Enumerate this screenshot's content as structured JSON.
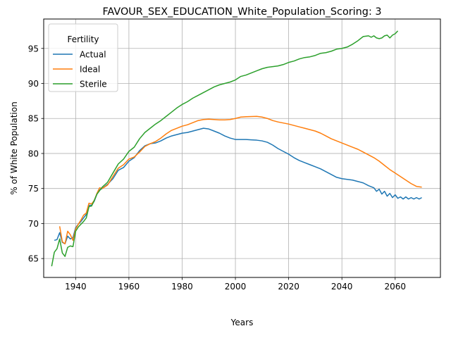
{
  "chart_data": {
    "type": "line",
    "title": "FAVOUR_SEX_EDUCATION_White_Population_Scoring: 3",
    "xlabel": "Years",
    "ylabel": "% of White Population",
    "xlim": [
      1928,
      2077
    ],
    "ylim": [
      62.3,
      99.2
    ],
    "xticks": [
      1940,
      1960,
      1980,
      2000,
      2020,
      2040,
      2060
    ],
    "yticks": [
      65,
      70,
      75,
      80,
      85,
      90,
      95
    ],
    "grid": true,
    "legend": {
      "title": "Fertility",
      "placement": "top-left"
    },
    "series": [
      {
        "name": "Actual",
        "color": "#1f77b4",
        "points": [
          [
            1932,
            67.6
          ],
          [
            1933,
            67.7
          ],
          [
            1934,
            68.7
          ],
          [
            1935,
            67.3
          ],
          [
            1936,
            67.1
          ],
          [
            1937,
            68.2
          ],
          [
            1938,
            67.8
          ],
          [
            1939,
            68.0
          ],
          [
            1940,
            69.4
          ],
          [
            1941,
            69.9
          ],
          [
            1942,
            70.3
          ],
          [
            1943,
            70.8
          ],
          [
            1944,
            71.3
          ],
          [
            1945,
            72.6
          ],
          [
            1946,
            72.6
          ],
          [
            1947,
            73.2
          ],
          [
            1948,
            74.2
          ],
          [
            1949,
            74.8
          ],
          [
            1950,
            75.0
          ],
          [
            1952,
            75.6
          ],
          [
            1954,
            76.4
          ],
          [
            1956,
            77.6
          ],
          [
            1958,
            78.0
          ],
          [
            1960,
            78.9
          ],
          [
            1962,
            79.4
          ],
          [
            1964,
            80.4
          ],
          [
            1966,
            81.1
          ],
          [
            1968,
            81.4
          ],
          [
            1970,
            81.5
          ],
          [
            1972,
            81.8
          ],
          [
            1974,
            82.2
          ],
          [
            1976,
            82.5
          ],
          [
            1978,
            82.7
          ],
          [
            1980,
            82.9
          ],
          [
            1982,
            83.0
          ],
          [
            1984,
            83.2
          ],
          [
            1986,
            83.4
          ],
          [
            1988,
            83.6
          ],
          [
            1990,
            83.5
          ],
          [
            1992,
            83.2
          ],
          [
            1994,
            82.9
          ],
          [
            1996,
            82.5
          ],
          [
            1998,
            82.2
          ],
          [
            2000,
            82.0
          ],
          [
            2002,
            82.0
          ],
          [
            2004,
            82.0
          ],
          [
            2006,
            81.95
          ],
          [
            2008,
            81.9
          ],
          [
            2010,
            81.8
          ],
          [
            2012,
            81.6
          ],
          [
            2014,
            81.2
          ],
          [
            2016,
            80.7
          ],
          [
            2018,
            80.3
          ],
          [
            2020,
            79.9
          ],
          [
            2022,
            79.4
          ],
          [
            2024,
            79.0
          ],
          [
            2026,
            78.7
          ],
          [
            2028,
            78.4
          ],
          [
            2030,
            78.1
          ],
          [
            2032,
            77.8
          ],
          [
            2034,
            77.4
          ],
          [
            2036,
            77.0
          ],
          [
            2038,
            76.6
          ],
          [
            2040,
            76.4
          ],
          [
            2042,
            76.3
          ],
          [
            2044,
            76.2
          ],
          [
            2046,
            76.0
          ],
          [
            2048,
            75.8
          ],
          [
            2050,
            75.4
          ],
          [
            2052,
            75.1
          ],
          [
            2053,
            74.6
          ],
          [
            2054,
            74.9
          ],
          [
            2055,
            74.2
          ],
          [
            2056,
            74.6
          ],
          [
            2057,
            73.9
          ],
          [
            2058,
            74.3
          ],
          [
            2059,
            73.7
          ],
          [
            2060,
            74.1
          ],
          [
            2061,
            73.6
          ],
          [
            2062,
            73.8
          ],
          [
            2063,
            73.5
          ],
          [
            2064,
            73.8
          ],
          [
            2065,
            73.5
          ],
          [
            2066,
            73.7
          ],
          [
            2067,
            73.5
          ],
          [
            2068,
            73.7
          ],
          [
            2069,
            73.5
          ],
          [
            2070,
            73.7
          ]
        ]
      },
      {
        "name": "Ideal",
        "color": "#ff7f0e",
        "points": [
          [
            1934,
            69.6
          ],
          [
            1935,
            67.4
          ],
          [
            1936,
            67.1
          ],
          [
            1937,
            68.9
          ],
          [
            1938,
            68.4
          ],
          [
            1939,
            67.6
          ],
          [
            1940,
            69.2
          ],
          [
            1941,
            69.9
          ],
          [
            1942,
            70.5
          ],
          [
            1943,
            71.2
          ],
          [
            1944,
            71.5
          ],
          [
            1945,
            72.9
          ],
          [
            1946,
            72.8
          ],
          [
            1947,
            73.3
          ],
          [
            1948,
            74.3
          ],
          [
            1949,
            75.1
          ],
          [
            1950,
            75.0
          ],
          [
            1952,
            75.5
          ],
          [
            1954,
            76.7
          ],
          [
            1956,
            77.9
          ],
          [
            1958,
            78.4
          ],
          [
            1960,
            79.2
          ],
          [
            1962,
            79.5
          ],
          [
            1964,
            80.2
          ],
          [
            1966,
            81.0
          ],
          [
            1968,
            81.4
          ],
          [
            1970,
            81.7
          ],
          [
            1972,
            82.2
          ],
          [
            1974,
            82.8
          ],
          [
            1976,
            83.3
          ],
          [
            1978,
            83.6
          ],
          [
            1980,
            83.9
          ],
          [
            1982,
            84.1
          ],
          [
            1984,
            84.4
          ],
          [
            1986,
            84.7
          ],
          [
            1988,
            84.85
          ],
          [
            1990,
            84.9
          ],
          [
            1992,
            84.85
          ],
          [
            1994,
            84.8
          ],
          [
            1996,
            84.8
          ],
          [
            1998,
            84.85
          ],
          [
            2000,
            85.0
          ],
          [
            2002,
            85.2
          ],
          [
            2004,
            85.25
          ],
          [
            2006,
            85.28
          ],
          [
            2008,
            85.3
          ],
          [
            2010,
            85.2
          ],
          [
            2012,
            85.0
          ],
          [
            2014,
            84.7
          ],
          [
            2016,
            84.5
          ],
          [
            2018,
            84.35
          ],
          [
            2020,
            84.2
          ],
          [
            2022,
            84.0
          ],
          [
            2024,
            83.8
          ],
          [
            2026,
            83.6
          ],
          [
            2028,
            83.4
          ],
          [
            2030,
            83.2
          ],
          [
            2032,
            82.9
          ],
          [
            2034,
            82.5
          ],
          [
            2036,
            82.1
          ],
          [
            2038,
            81.8
          ],
          [
            2040,
            81.5
          ],
          [
            2042,
            81.2
          ],
          [
            2044,
            80.9
          ],
          [
            2046,
            80.6
          ],
          [
            2048,
            80.2
          ],
          [
            2050,
            79.8
          ],
          [
            2052,
            79.4
          ],
          [
            2054,
            78.9
          ],
          [
            2056,
            78.3
          ],
          [
            2058,
            77.7
          ],
          [
            2060,
            77.2
          ],
          [
            2062,
            76.7
          ],
          [
            2064,
            76.2
          ],
          [
            2066,
            75.7
          ],
          [
            2068,
            75.3
          ],
          [
            2070,
            75.2
          ]
        ]
      },
      {
        "name": "Sterile",
        "color": "#2ca02c",
        "points": [
          [
            1931,
            63.9
          ],
          [
            1932,
            65.9
          ],
          [
            1933,
            66.4
          ],
          [
            1934,
            67.8
          ],
          [
            1935,
            65.8
          ],
          [
            1936,
            65.3
          ],
          [
            1937,
            66.6
          ],
          [
            1938,
            66.8
          ],
          [
            1939,
            66.7
          ],
          [
            1940,
            68.9
          ],
          [
            1941,
            69.5
          ],
          [
            1942,
            69.9
          ],
          [
            1943,
            70.3
          ],
          [
            1944,
            70.8
          ],
          [
            1945,
            72.4
          ],
          [
            1946,
            72.5
          ],
          [
            1947,
            73.3
          ],
          [
            1948,
            74.2
          ],
          [
            1949,
            74.7
          ],
          [
            1950,
            75.2
          ],
          [
            1952,
            75.9
          ],
          [
            1954,
            77.2
          ],
          [
            1956,
            78.5
          ],
          [
            1958,
            79.2
          ],
          [
            1960,
            80.3
          ],
          [
            1962,
            80.9
          ],
          [
            1964,
            82.1
          ],
          [
            1966,
            83.0
          ],
          [
            1968,
            83.6
          ],
          [
            1970,
            84.2
          ],
          [
            1972,
            84.7
          ],
          [
            1974,
            85.3
          ],
          [
            1976,
            85.9
          ],
          [
            1978,
            86.5
          ],
          [
            1980,
            87.0
          ],
          [
            1982,
            87.4
          ],
          [
            1984,
            87.9
          ],
          [
            1986,
            88.3
          ],
          [
            1988,
            88.7
          ],
          [
            1990,
            89.1
          ],
          [
            1992,
            89.5
          ],
          [
            1994,
            89.8
          ],
          [
            1996,
            90.0
          ],
          [
            1998,
            90.2
          ],
          [
            2000,
            90.5
          ],
          [
            2002,
            91.0
          ],
          [
            2004,
            91.2
          ],
          [
            2006,
            91.5
          ],
          [
            2008,
            91.8
          ],
          [
            2010,
            92.1
          ],
          [
            2012,
            92.3
          ],
          [
            2014,
            92.4
          ],
          [
            2016,
            92.5
          ],
          [
            2018,
            92.7
          ],
          [
            2020,
            93.0
          ],
          [
            2022,
            93.2
          ],
          [
            2024,
            93.5
          ],
          [
            2026,
            93.7
          ],
          [
            2028,
            93.8
          ],
          [
            2030,
            94.0
          ],
          [
            2032,
            94.3
          ],
          [
            2034,
            94.4
          ],
          [
            2036,
            94.6
          ],
          [
            2038,
            94.9
          ],
          [
            2040,
            95.0
          ],
          [
            2042,
            95.2
          ],
          [
            2044,
            95.6
          ],
          [
            2046,
            96.1
          ],
          [
            2048,
            96.7
          ],
          [
            2050,
            96.8
          ],
          [
            2051,
            96.6
          ],
          [
            2052,
            96.8
          ],
          [
            2053,
            96.5
          ],
          [
            2054,
            96.4
          ],
          [
            2055,
            96.5
          ],
          [
            2056,
            96.8
          ],
          [
            2057,
            96.9
          ],
          [
            2058,
            96.5
          ],
          [
            2059,
            96.9
          ],
          [
            2060,
            97.1
          ],
          [
            2061,
            97.5
          ]
        ]
      }
    ]
  }
}
